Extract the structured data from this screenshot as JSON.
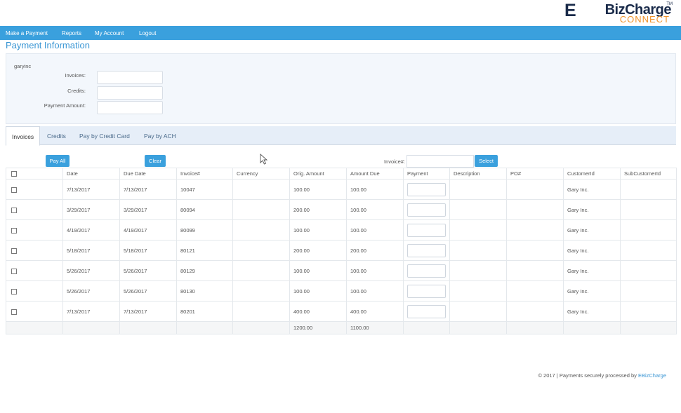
{
  "logo": {
    "brand": "BizCharge",
    "brand_e": "E",
    "sub": "CONNECT",
    "tm": "TM"
  },
  "nav": [
    "Make a Payment",
    "Reports",
    "My Account",
    "Logout"
  ],
  "page_title": "Payment Information",
  "summary": {
    "customer": "garyinc",
    "invoices_label": "Invoices:",
    "credits_label": "Credits:",
    "payment_amount_label": "Payment Amount:",
    "invoices_value": "",
    "credits_value": "",
    "payment_amount_value": ""
  },
  "tabs": [
    "Invoices",
    "Credits",
    "Pay by Credit Card",
    "Pay by ACH"
  ],
  "actions": {
    "pay_all": "Pay All",
    "clear": "Clear",
    "invoice_label": "Invoice#:",
    "invoice_value": "",
    "select": "Select"
  },
  "table": {
    "headers": [
      "",
      "Date",
      "Due Date",
      "Invoice#",
      "Currency",
      "Orig. Amount",
      "Amount Due",
      "Payment",
      "Description",
      "PO#",
      "CustomerId",
      "SubCustomerId"
    ],
    "rows": [
      {
        "date": "7/13/2017",
        "due": "7/13/2017",
        "invoice": "10047",
        "currency": "",
        "orig": "100.00",
        "due_amt": "100.00",
        "description": "",
        "po": "",
        "customer": "Gary Inc.",
        "sub": ""
      },
      {
        "date": "3/29/2017",
        "due": "3/29/2017",
        "invoice": "80094",
        "currency": "",
        "orig": "200.00",
        "due_amt": "100.00",
        "description": "",
        "po": "",
        "customer": "Gary Inc.",
        "sub": ""
      },
      {
        "date": "4/19/2017",
        "due": "4/19/2017",
        "invoice": "80099",
        "currency": "",
        "orig": "100.00",
        "due_amt": "100.00",
        "description": "",
        "po": "",
        "customer": "Gary Inc.",
        "sub": ""
      },
      {
        "date": "5/18/2017",
        "due": "5/18/2017",
        "invoice": "80121",
        "currency": "",
        "orig": "200.00",
        "due_amt": "200.00",
        "description": "",
        "po": "",
        "customer": "Gary Inc.",
        "sub": ""
      },
      {
        "date": "5/26/2017",
        "due": "5/26/2017",
        "invoice": "80129",
        "currency": "",
        "orig": "100.00",
        "due_amt": "100.00",
        "description": "",
        "po": "",
        "customer": "Gary Inc.",
        "sub": ""
      },
      {
        "date": "5/26/2017",
        "due": "5/26/2017",
        "invoice": "80130",
        "currency": "",
        "orig": "100.00",
        "due_amt": "100.00",
        "description": "",
        "po": "",
        "customer": "Gary Inc.",
        "sub": ""
      },
      {
        "date": "7/13/2017",
        "due": "7/13/2017",
        "invoice": "80201",
        "currency": "",
        "orig": "400.00",
        "due_amt": "400.00",
        "description": "",
        "po": "",
        "customer": "Gary Inc.",
        "sub": ""
      }
    ],
    "totals": {
      "orig": "1200.00",
      "due_amt": "1100.00"
    }
  },
  "footer": {
    "text": "© 2017 | Payments securely processed by ",
    "link": "EBizCharge"
  }
}
